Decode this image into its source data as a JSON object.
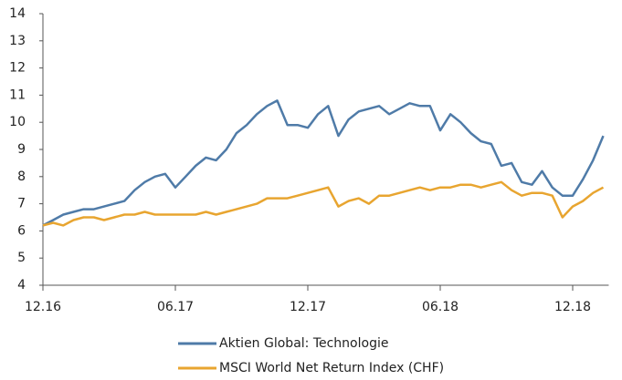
{
  "chart_data": {
    "type": "line",
    "categories": [
      "12.16",
      null,
      null,
      null,
      null,
      null,
      null,
      null,
      null,
      null,
      null,
      null,
      null,
      "06.17",
      null,
      null,
      null,
      null,
      null,
      null,
      null,
      null,
      null,
      null,
      null,
      null,
      "12.17",
      null,
      null,
      null,
      null,
      null,
      null,
      null,
      null,
      null,
      null,
      null,
      null,
      "06.18",
      null,
      null,
      null,
      null,
      null,
      null,
      null,
      null,
      null,
      null,
      null,
      null,
      "12.18",
      null,
      null,
      null
    ],
    "series": [
      {
        "name": "Aktien Global: Technologie",
        "color": "#4f7ba8",
        "values": [
          6.2,
          6.4,
          6.6,
          6.7,
          6.8,
          6.8,
          6.9,
          7.0,
          7.1,
          7.5,
          7.8,
          8.0,
          8.1,
          7.6,
          8.0,
          8.4,
          8.7,
          8.6,
          9.0,
          9.6,
          9.9,
          10.3,
          10.6,
          10.8,
          9.9,
          9.9,
          9.8,
          10.3,
          10.6,
          9.5,
          10.1,
          10.4,
          10.5,
          10.6,
          10.3,
          10.5,
          10.7,
          10.6,
          10.6,
          9.7,
          10.3,
          10.0,
          9.6,
          9.3,
          9.2,
          8.4,
          8.5,
          7.8,
          7.7,
          8.2,
          7.6,
          7.3,
          7.3,
          7.9,
          8.6,
          9.5
        ]
      },
      {
        "name": "MSCI World Net Return Index (CHF)",
        "color": "#e8a530",
        "values": [
          6.2,
          6.3,
          6.2,
          6.4,
          6.5,
          6.5,
          6.4,
          6.5,
          6.6,
          6.6,
          6.7,
          6.6,
          6.6,
          6.6,
          6.6,
          6.6,
          6.7,
          6.6,
          6.7,
          6.8,
          6.9,
          7.0,
          7.2,
          7.2,
          7.2,
          7.3,
          7.4,
          7.5,
          7.6,
          6.9,
          7.1,
          7.2,
          7.0,
          7.3,
          7.3,
          7.4,
          7.5,
          7.6,
          7.5,
          7.6,
          7.6,
          7.7,
          7.7,
          7.6,
          7.7,
          7.8,
          7.5,
          7.3,
          7.4,
          7.4,
          7.3,
          6.5,
          6.9,
          7.1,
          7.4,
          7.6
        ]
      }
    ],
    "ylim": [
      4,
      14
    ],
    "yticks": [
      4,
      5,
      6,
      7,
      8,
      9,
      10,
      11,
      12,
      13,
      14
    ]
  }
}
